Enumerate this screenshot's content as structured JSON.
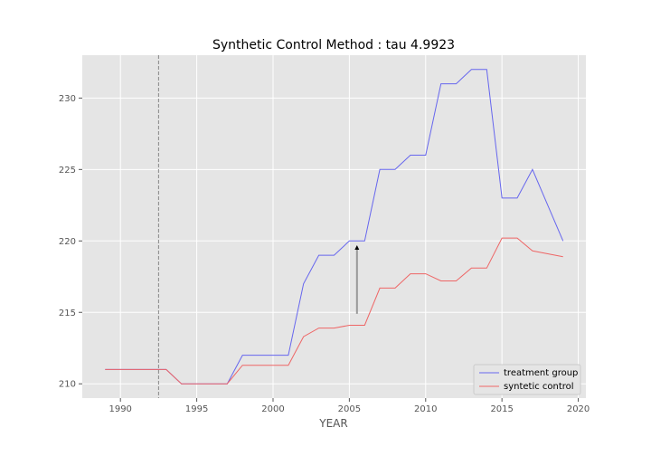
{
  "chart_data": {
    "type": "line",
    "title": "Synthetic Control Method : tau 4.9923",
    "xlabel": "YEAR",
    "ylabel": "",
    "xlim": [
      1987.5,
      2020.5
    ],
    "ylim": [
      209.0,
      233.0
    ],
    "xticks": [
      1990,
      1995,
      2000,
      2005,
      2010,
      2015,
      2020
    ],
    "yticks": [
      210,
      215,
      220,
      225,
      230
    ],
    "grid": true,
    "legend_position": "lower-right",
    "background_color": "#e5e5e5",
    "treatment_line_x": 1992.5,
    "arrow": {
      "x": 2005.5,
      "y_from": 214.9,
      "y_to": 219.7,
      "color": "#999999"
    },
    "x": [
      1989,
      1990,
      1991,
      1992,
      1993,
      1994,
      1995,
      1996,
      1997,
      1998,
      1999,
      2000,
      2001,
      2002,
      2003,
      2004,
      2005,
      2006,
      2007,
      2008,
      2009,
      2010,
      2011,
      2012,
      2013,
      2014,
      2015,
      2016,
      2017,
      2018,
      2019
    ],
    "series": [
      {
        "name": "treatment group",
        "color": "#6666ee",
        "values": [
          211,
          211,
          211,
          211,
          211,
          210,
          210,
          210,
          210,
          212,
          212,
          212,
          212,
          217,
          219,
          219,
          220,
          220,
          225,
          225,
          226,
          226,
          231,
          231,
          232,
          232,
          223,
          223,
          225,
          222.5,
          220
        ]
      },
      {
        "name": "syntetic control",
        "color": "#ee6666",
        "values": [
          211,
          211,
          211,
          211,
          211,
          210,
          210,
          210,
          210,
          211.3,
          211.3,
          211.3,
          211.3,
          213.3,
          213.9,
          213.9,
          214.1,
          214.1,
          216.7,
          216.7,
          217.7,
          217.7,
          217.2,
          217.2,
          218.1,
          218.1,
          220.2,
          220.2,
          219.3,
          219.1,
          218.9
        ]
      }
    ]
  }
}
